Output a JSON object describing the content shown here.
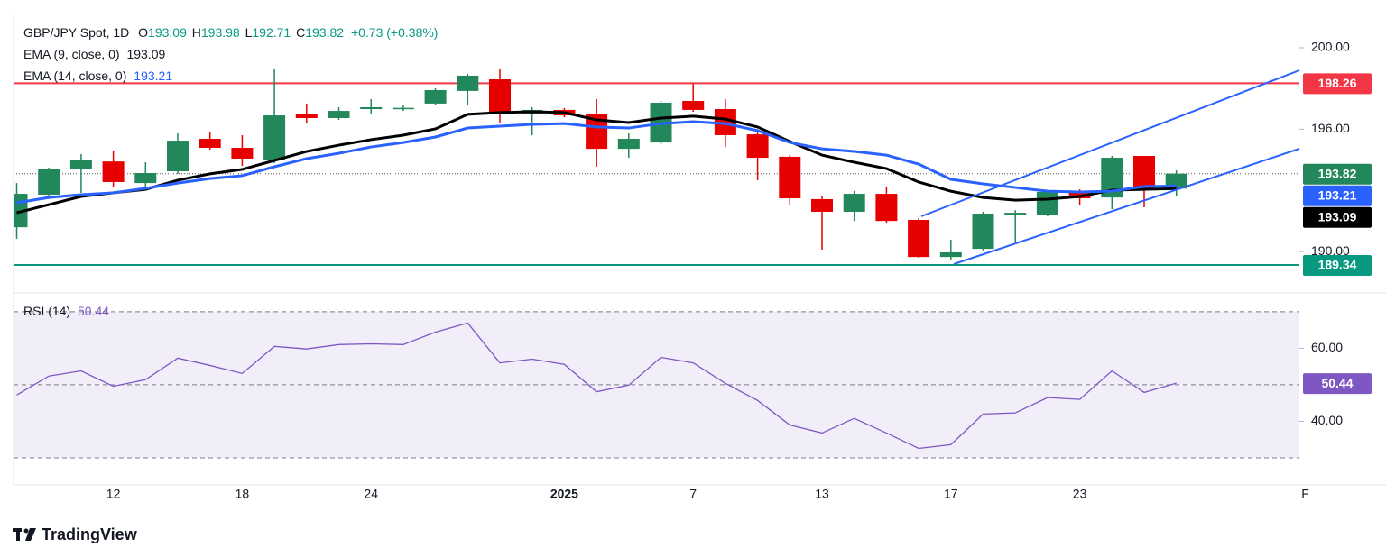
{
  "chart_data": [
    {
      "type": "candlestick",
      "title": "GBP/JPY Spot, 1D",
      "ohlc_labels": [
        "O",
        "H",
        "L",
        "C"
      ],
      "change_label": "+0.73 (+0.38%)",
      "categories": [
        null,
        null,
        null,
        "12",
        null,
        null,
        null,
        "18",
        null,
        null,
        null,
        "24",
        null,
        null,
        null,
        null,
        null,
        "2025",
        null,
        null,
        null,
        "7",
        null,
        null,
        null,
        "13",
        null,
        null,
        null,
        "17",
        null,
        null,
        null,
        "23",
        null,
        null,
        null,
        null,
        null,
        null,
        "F"
      ],
      "open": [
        191.19,
        192.79,
        194.03,
        194.42,
        193.36,
        193.94,
        195.53,
        195.09,
        194.47,
        196.73,
        196.55,
        196.99,
        197.0,
        197.26,
        197.88,
        198.45,
        196.73,
        196.95,
        196.77,
        195.04,
        195.35,
        197.39,
        196.99,
        195.75,
        194.65,
        192.57,
        191.95,
        192.83,
        191.55,
        189.73,
        190.13,
        191.81,
        191.81,
        192.92,
        192.65,
        194.69,
        193.09,
        null,
        null,
        null,
        null
      ],
      "high": [
        193.36,
        194.12,
        194.78,
        194.96,
        194.38,
        195.8,
        195.88,
        195.71,
        198.94,
        197.26,
        197.08,
        197.48,
        197.17,
        198.01,
        198.72,
        198.94,
        197.08,
        197.04,
        197.48,
        195.8,
        197.39,
        198.23,
        197.48,
        195.88,
        194.74,
        192.7,
        192.97,
        193.19,
        191.64,
        190.58,
        191.95,
        192.03,
        193.01,
        193.05,
        194.69,
        194.69,
        193.98,
        null,
        null,
        null,
        null
      ],
      "low": [
        190.62,
        192.75,
        192.88,
        193.14,
        193.05,
        193.81,
        195.0,
        194.2,
        194.34,
        196.28,
        196.46,
        196.73,
        196.9,
        197.17,
        197.21,
        196.33,
        195.71,
        196.59,
        194.16,
        194.6,
        195.27,
        196.86,
        195.13,
        193.5,
        192.26,
        190.09,
        191.5,
        191.41,
        189.69,
        189.6,
        190.05,
        190.49,
        191.73,
        192.26,
        192.08,
        192.17,
        192.71,
        null,
        null,
        null,
        null
      ],
      "close": [
        192.83,
        194.03,
        194.47,
        193.41,
        193.85,
        195.44,
        195.09,
        194.56,
        196.68,
        196.55,
        196.9,
        197.08,
        197.05,
        197.92,
        198.63,
        196.73,
        196.95,
        196.68,
        195.04,
        195.53,
        197.3,
        196.95,
        195.71,
        194.6,
        192.61,
        191.95,
        192.83,
        191.5,
        189.73,
        189.96,
        191.86,
        191.9,
        192.92,
        192.61,
        194.6,
        193.05,
        193.82,
        null,
        null,
        null,
        null
      ],
      "up_color": "#22875a",
      "down_color": "#e60000",
      "series": [
        {
          "name": "EMA (9, close, 0)",
          "color": "#000000",
          "values": [
            191.9,
            192.3,
            192.7,
            192.88,
            193.05,
            193.5,
            193.81,
            194.03,
            194.47,
            194.91,
            195.22,
            195.49,
            195.71,
            196.02,
            196.73,
            196.82,
            196.86,
            196.82,
            196.46,
            196.33,
            196.55,
            196.64,
            196.5,
            196.11,
            195.4,
            194.73,
            194.38,
            194.07,
            193.41,
            192.96,
            192.65,
            192.52,
            192.57,
            192.7,
            193.01,
            193.05,
            193.09,
            null,
            null,
            null,
            null
          ]
        },
        {
          "name": "EMA (14, close, 0)",
          "color": "#2962ff",
          "values": [
            192.39,
            192.65,
            192.79,
            192.88,
            193.1,
            193.36,
            193.58,
            193.72,
            194.16,
            194.56,
            194.82,
            195.13,
            195.35,
            195.62,
            196.06,
            196.15,
            196.24,
            196.28,
            196.11,
            196.06,
            196.28,
            196.37,
            196.28,
            195.93,
            195.35,
            195.04,
            194.91,
            194.73,
            194.29,
            193.54,
            193.32,
            193.14,
            192.96,
            192.92,
            192.96,
            193.19,
            193.21,
            null,
            null,
            null,
            null
          ]
        }
      ],
      "hlines": [
        {
          "value": 198.26,
          "color": "#f23645"
        },
        {
          "value": 189.34,
          "color": "#089981"
        }
      ],
      "ylim": [
        188.1,
        201.68
      ],
      "yticks": [
        {
          "value": 190,
          "label": "190.00"
        },
        {
          "value": 196,
          "label": "196.00"
        },
        {
          "value": 200,
          "label": "200.00"
        }
      ]
    },
    {
      "type": "line",
      "title": "RSI (14)",
      "series": [
        {
          "name": "RSI",
          "color": "#7e57c2",
          "values": [
            47.2,
            52.4,
            53.8,
            49.6,
            51.4,
            57.3,
            55.3,
            53.1,
            60.5,
            59.8,
            61.0,
            61.2,
            61.0,
            64.4,
            66.9,
            56.0,
            57.0,
            55.6,
            48.1,
            49.9,
            57.5,
            56.0,
            50.4,
            45.7,
            39.0,
            36.8,
            40.8,
            36.8,
            32.6,
            33.6,
            42.0,
            42.3,
            46.5,
            46.0,
            53.8,
            47.9,
            50.44,
            null,
            null,
            null,
            null
          ]
        }
      ],
      "band": [
        30,
        70
      ],
      "midline": 50,
      "ylim": [
        22.6,
        74.4
      ],
      "yticks": [
        {
          "value": 40,
          "label": "40.00"
        },
        {
          "value": 60,
          "label": "60.00"
        }
      ]
    }
  ],
  "brand": "TradingView"
}
